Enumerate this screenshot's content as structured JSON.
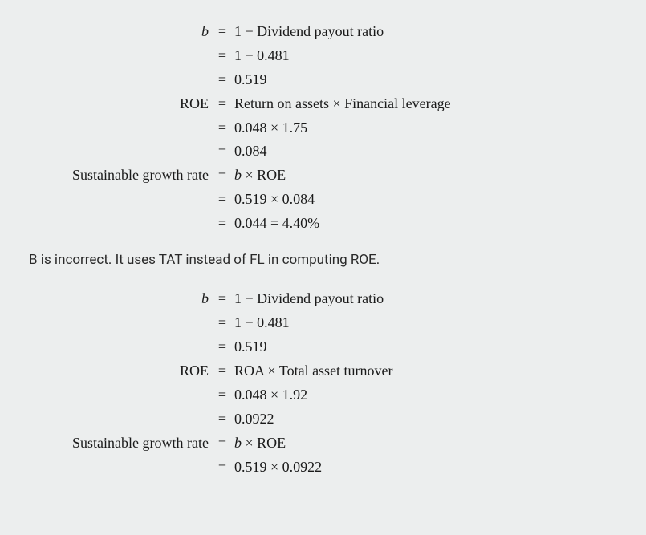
{
  "block1": {
    "lhs_b": "b",
    "r1": "1 − Dividend payout ratio",
    "r2": "1 − 0.481",
    "r3": "0.519",
    "lhs_roe": "ROE",
    "r4": "Return on assets × Financial leverage",
    "r5": "0.048 × 1.75",
    "r6": "0.084",
    "lhs_sgr_pre": "Sustainable growth rate",
    "r7_pre": "b",
    "r7_post": " × ROE",
    "r8": "0.519 × 0.084",
    "r9": "0.044 = 4.40%"
  },
  "narrative": "B is incorrect. It uses TAT instead of FL in computing ROE.",
  "block2": {
    "lhs_b": "b",
    "r1": "1 − Dividend payout ratio",
    "r2": "1 − 0.481",
    "r3": "0.519",
    "lhs_roe": "ROE",
    "r4": "ROA × Total asset turnover",
    "r5": "0.048 × 1.92",
    "r6": "0.0922",
    "lhs_sgr_pre": "Sustainable growth rate",
    "r7_pre": "b",
    "r7_post": " × ROE",
    "r8": "0.519 × 0.0922"
  },
  "eq": "="
}
